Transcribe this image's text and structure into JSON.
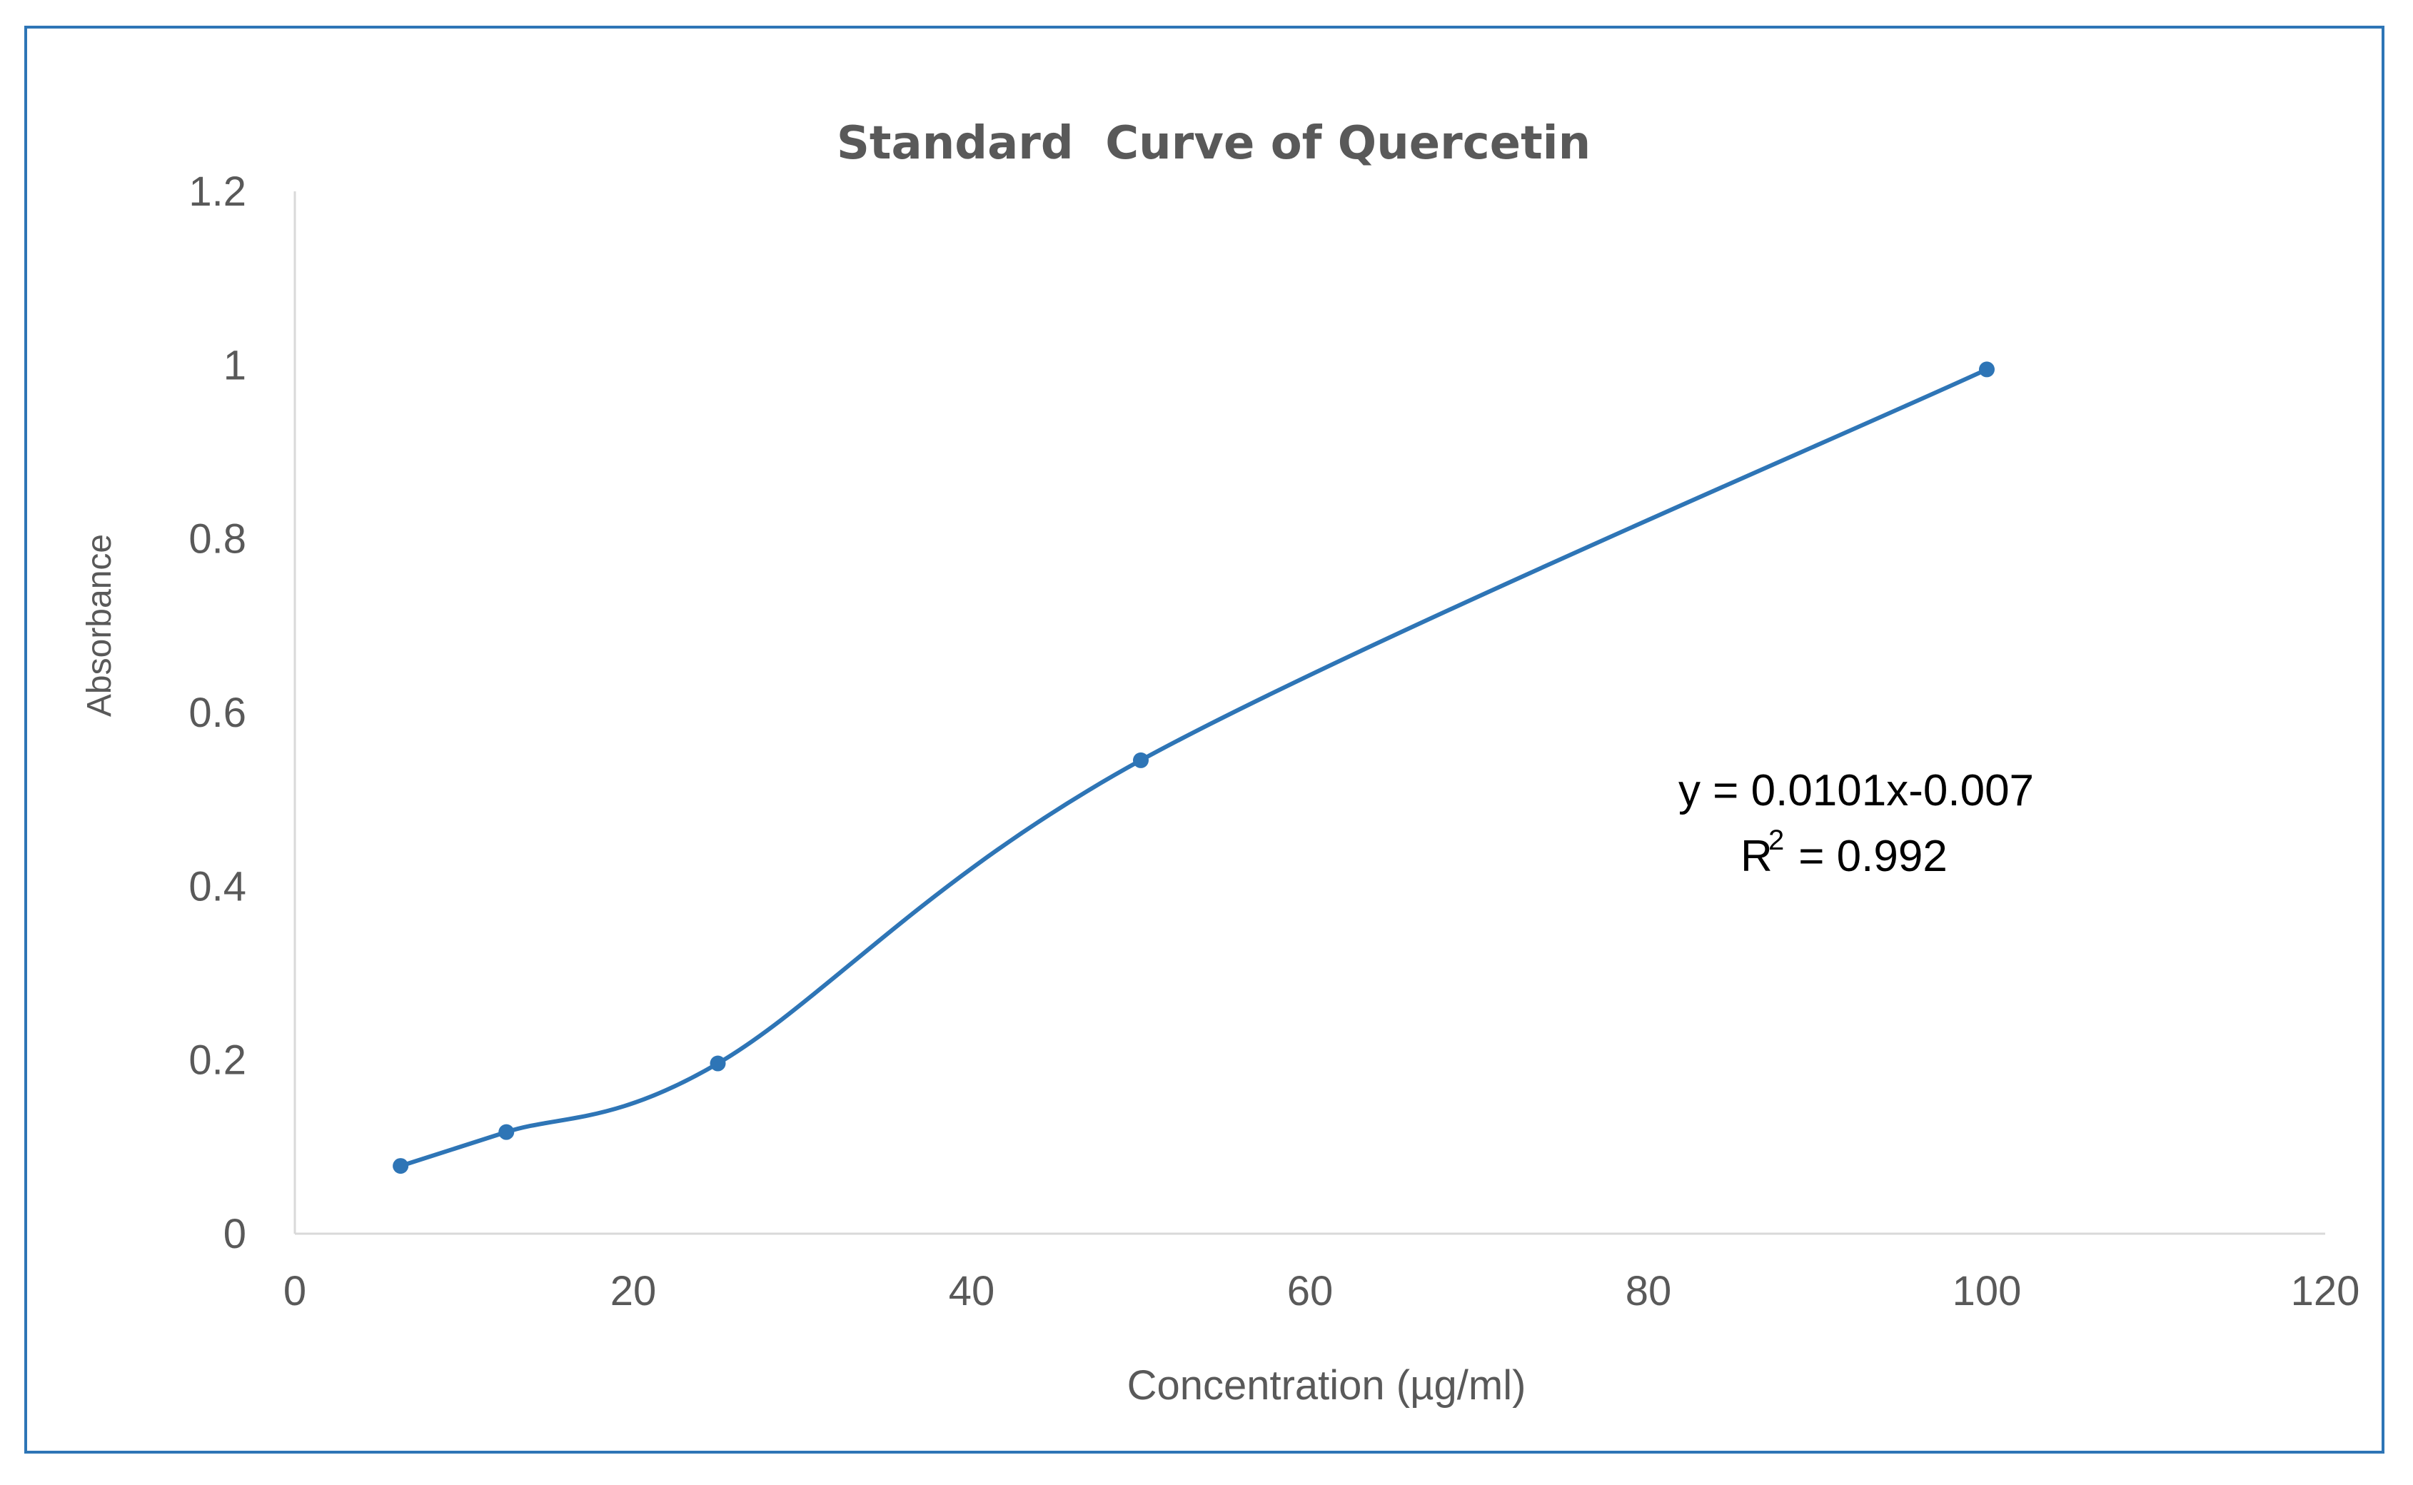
{
  "chart_data": {
    "type": "line",
    "title": "Standard  Curve of Quercetin",
    "xlabel": "Concentration (µg/ml)",
    "ylabel": "Absorbance",
    "xlim": [
      0,
      120
    ],
    "ylim": [
      0,
      1.2
    ],
    "x_ticks": [
      "0",
      "20",
      "40",
      "60",
      "80",
      "100",
      "120"
    ],
    "y_ticks": [
      "0",
      "0.2",
      "0.4",
      "0.6",
      "0.8",
      "1",
      "1.2"
    ],
    "series": [
      {
        "name": "Absorbance",
        "color": "#2e75b6",
        "x": [
          6.25,
          12.5,
          25,
          50,
          100
        ],
        "y": [
          0.078,
          0.117,
          0.196,
          0.545,
          0.995
        ]
      }
    ],
    "equation": "y = 0.0101x-0.007",
    "r2_prefix": "R",
    "r2_superscript": "2",
    "r2_value": " = 0.992",
    "grid": false
  },
  "colors": {
    "border": "#2e75b6",
    "series": "#2e75b6",
    "axis": "#d9d9d9",
    "text": "#595959"
  }
}
